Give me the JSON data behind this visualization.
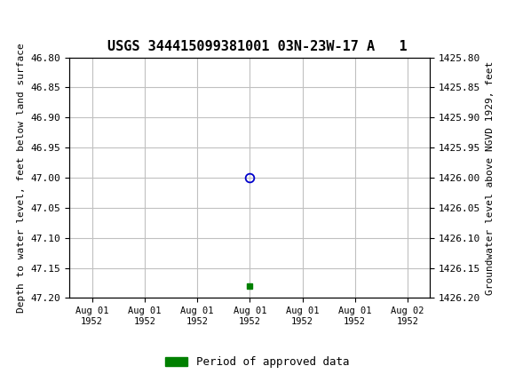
{
  "title": "USGS 344415099381001 03N-23W-17 A   1",
  "ylabel_left": "Depth to water level, feet below land surface",
  "ylabel_right": "Groundwater level above NGVD 1929, feet",
  "ylim_left": [
    46.8,
    47.2
  ],
  "ylim_right": [
    1425.8,
    1426.2
  ],
  "yticks_left": [
    46.8,
    46.85,
    46.9,
    46.95,
    47.0,
    47.05,
    47.1,
    47.15,
    47.2
  ],
  "yticks_right": [
    1425.8,
    1425.85,
    1425.9,
    1425.95,
    1426.0,
    1426.05,
    1426.1,
    1426.15,
    1426.2
  ],
  "data_point_y": 47.0,
  "data_point_color": "#0000cc",
  "approved_point_y": 47.18,
  "approved_point_color": "#008000",
  "header_color": "#1a6b3c",
  "background_color": "#ffffff",
  "plot_bg_color": "#ffffff",
  "grid_color": "#c0c0c0",
  "font_family": "monospace",
  "legend_label": "Period of approved data",
  "legend_color": "#008000",
  "xtick_labels_top": [
    "Aug 01",
    "Aug 01",
    "Aug 01",
    "Aug 01",
    "Aug 01",
    "Aug 01",
    "Aug 02"
  ],
  "xtick_labels_bot": [
    "1952",
    "1952",
    "1952",
    "1952",
    "1952",
    "1952",
    "1952"
  ],
  "x_min": -4,
  "x_max": 28,
  "data_x": 12,
  "title_fontsize": 11,
  "tick_fontsize": 8,
  "legend_fontsize": 9
}
